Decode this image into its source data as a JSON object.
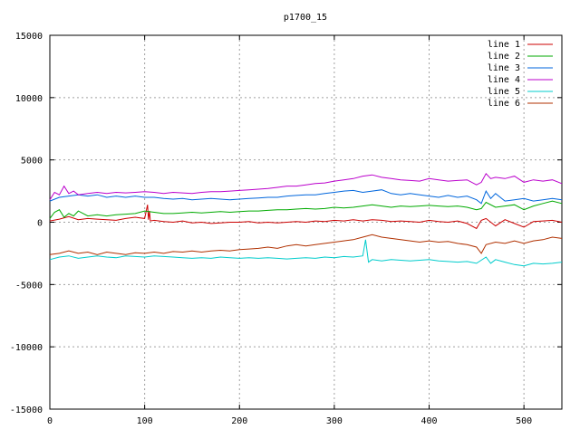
{
  "chart_data": {
    "type": "line",
    "title": "p1700_15",
    "xlabel": "",
    "ylabel": "",
    "xlim": [
      0,
      540
    ],
    "ylim": [
      -15000,
      15000
    ],
    "xticks": [
      0,
      100,
      200,
      300,
      400,
      500
    ],
    "yticks": [
      -15000,
      -10000,
      -5000,
      0,
      5000,
      10000,
      15000
    ],
    "grid": true,
    "legend_position": "top-right",
    "series": [
      {
        "name": "line 1",
        "color": "#cc0000",
        "x": [
          0,
          10,
          20,
          30,
          40,
          50,
          60,
          70,
          80,
          90,
          100,
          103,
          104,
          105,
          106,
          110,
          120,
          130,
          140,
          150,
          160,
          170,
          180,
          190,
          200,
          210,
          220,
          230,
          240,
          250,
          260,
          270,
          280,
          290,
          300,
          310,
          320,
          330,
          340,
          350,
          360,
          370,
          380,
          390,
          400,
          410,
          420,
          430,
          440,
          450,
          455,
          460,
          470,
          480,
          490,
          500,
          510,
          520,
          530,
          540
        ],
        "y": [
          100,
          250,
          450,
          200,
          300,
          250,
          200,
          150,
          300,
          400,
          300,
          1400,
          200,
          900,
          100,
          150,
          50,
          0,
          100,
          -50,
          0,
          -100,
          -50,
          0,
          0,
          50,
          -50,
          0,
          -50,
          0,
          50,
          0,
          100,
          50,
          150,
          100,
          200,
          100,
          200,
          150,
          50,
          100,
          50,
          0,
          150,
          50,
          0,
          100,
          -100,
          -500,
          150,
          300,
          -300,
          200,
          -100,
          -400,
          50,
          100,
          150,
          0
        ]
      },
      {
        "name": "line 2",
        "color": "#00aa00",
        "x": [
          0,
          5,
          10,
          15,
          20,
          25,
          30,
          40,
          50,
          60,
          70,
          80,
          90,
          100,
          110,
          120,
          130,
          140,
          150,
          160,
          170,
          180,
          190,
          200,
          210,
          220,
          230,
          240,
          250,
          260,
          270,
          280,
          290,
          300,
          310,
          320,
          330,
          340,
          350,
          360,
          370,
          380,
          390,
          400,
          410,
          420,
          430,
          440,
          450,
          455,
          460,
          470,
          480,
          490,
          500,
          510,
          520,
          530,
          540
        ],
        "y": [
          300,
          800,
          1000,
          400,
          700,
          500,
          900,
          500,
          600,
          500,
          600,
          650,
          700,
          900,
          800,
          700,
          700,
          750,
          800,
          750,
          800,
          850,
          800,
          850,
          900,
          900,
          950,
          1000,
          1000,
          1050,
          1100,
          1050,
          1100,
          1200,
          1150,
          1200,
          1300,
          1400,
          1300,
          1200,
          1300,
          1250,
          1300,
          1350,
          1300,
          1250,
          1300,
          1200,
          1000,
          1100,
          1600,
          1200,
          1300,
          1400,
          1000,
          1300,
          1500,
          1700,
          1500
        ]
      },
      {
        "name": "line 3",
        "color": "#0066dd",
        "x": [
          0,
          10,
          20,
          30,
          40,
          50,
          60,
          70,
          80,
          90,
          100,
          110,
          120,
          130,
          140,
          150,
          160,
          170,
          180,
          190,
          200,
          210,
          220,
          230,
          240,
          250,
          260,
          270,
          280,
          290,
          300,
          310,
          320,
          330,
          340,
          350,
          360,
          370,
          380,
          390,
          400,
          410,
          420,
          430,
          440,
          450,
          455,
          460,
          465,
          470,
          480,
          490,
          500,
          510,
          520,
          530,
          540
        ],
        "y": [
          1700,
          2000,
          2100,
          2200,
          2100,
          2200,
          2000,
          2100,
          2000,
          2100,
          2000,
          2000,
          1900,
          1850,
          1900,
          1800,
          1850,
          1900,
          1850,
          1800,
          1850,
          1900,
          1950,
          2000,
          2000,
          2100,
          2150,
          2200,
          2200,
          2300,
          2400,
          2500,
          2550,
          2400,
          2500,
          2600,
          2300,
          2200,
          2300,
          2200,
          2100,
          2000,
          2150,
          2000,
          2100,
          1800,
          1500,
          2500,
          1900,
          2300,
          1700,
          1800,
          1900,
          1700,
          1800,
          1900,
          1800
        ]
      },
      {
        "name": "line 4",
        "color": "#bb00cc",
        "x": [
          0,
          5,
          10,
          15,
          20,
          25,
          30,
          40,
          50,
          60,
          70,
          80,
          90,
          100,
          110,
          120,
          130,
          140,
          150,
          160,
          170,
          180,
          190,
          200,
          210,
          220,
          230,
          240,
          250,
          260,
          270,
          280,
          290,
          300,
          310,
          320,
          330,
          340,
          350,
          360,
          370,
          380,
          390,
          400,
          410,
          420,
          430,
          440,
          450,
          455,
          460,
          465,
          470,
          480,
          490,
          500,
          510,
          520,
          530,
          540
        ],
        "y": [
          1800,
          2400,
          2200,
          2900,
          2300,
          2500,
          2200,
          2300,
          2400,
          2300,
          2400,
          2350,
          2400,
          2450,
          2400,
          2300,
          2400,
          2350,
          2300,
          2400,
          2450,
          2450,
          2500,
          2550,
          2600,
          2650,
          2700,
          2800,
          2900,
          2900,
          3000,
          3100,
          3150,
          3300,
          3400,
          3500,
          3700,
          3800,
          3600,
          3500,
          3400,
          3350,
          3300,
          3500,
          3400,
          3300,
          3350,
          3400,
          3000,
          3200,
          3900,
          3500,
          3600,
          3500,
          3700,
          3200,
          3400,
          3300,
          3400,
          3100
        ]
      },
      {
        "name": "line 5",
        "color": "#00cccc",
        "x": [
          0,
          10,
          20,
          30,
          40,
          50,
          60,
          70,
          80,
          90,
          100,
          110,
          120,
          130,
          140,
          150,
          160,
          170,
          180,
          190,
          200,
          210,
          220,
          230,
          240,
          250,
          260,
          270,
          280,
          290,
          300,
          310,
          320,
          330,
          333,
          336,
          340,
          350,
          360,
          370,
          380,
          390,
          400,
          410,
          420,
          430,
          440,
          450,
          460,
          465,
          470,
          480,
          490,
          500,
          510,
          520,
          530,
          540
        ],
        "y": [
          -3000,
          -2800,
          -2700,
          -2900,
          -2800,
          -2700,
          -2800,
          -2850,
          -2700,
          -2750,
          -2800,
          -2700,
          -2750,
          -2800,
          -2850,
          -2900,
          -2850,
          -2900,
          -2800,
          -2850,
          -2900,
          -2850,
          -2900,
          -2850,
          -2900,
          -2950,
          -2900,
          -2850,
          -2900,
          -2800,
          -2850,
          -2750,
          -2800,
          -2700,
          -1400,
          -3200,
          -3000,
          -3100,
          -3000,
          -3050,
          -3100,
          -3050,
          -3000,
          -3100,
          -3150,
          -3200,
          -3150,
          -3300,
          -2800,
          -3300,
          -3000,
          -3200,
          -3400,
          -3500,
          -3300,
          -3350,
          -3300,
          -3200
        ]
      },
      {
        "name": "line 6",
        "color": "#b03000",
        "x": [
          0,
          10,
          20,
          30,
          40,
          50,
          60,
          70,
          80,
          90,
          100,
          110,
          120,
          130,
          140,
          150,
          160,
          170,
          180,
          190,
          200,
          210,
          220,
          230,
          240,
          250,
          260,
          270,
          280,
          290,
          300,
          310,
          320,
          330,
          340,
          350,
          360,
          370,
          380,
          390,
          400,
          410,
          420,
          430,
          440,
          450,
          455,
          460,
          470,
          480,
          490,
          500,
          510,
          520,
          530,
          540
        ],
        "y": [
          -2600,
          -2500,
          -2300,
          -2500,
          -2400,
          -2600,
          -2400,
          -2500,
          -2600,
          -2450,
          -2500,
          -2400,
          -2500,
          -2350,
          -2400,
          -2300,
          -2400,
          -2300,
          -2250,
          -2300,
          -2200,
          -2150,
          -2100,
          -2000,
          -2100,
          -1900,
          -1800,
          -1900,
          -1800,
          -1700,
          -1600,
          -1500,
          -1400,
          -1200,
          -1000,
          -1200,
          -1300,
          -1400,
          -1500,
          -1600,
          -1500,
          -1600,
          -1550,
          -1700,
          -1800,
          -2000,
          -2500,
          -1800,
          -1600,
          -1700,
          -1500,
          -1700,
          -1500,
          -1400,
          -1200,
          -1300
        ]
      }
    ]
  }
}
